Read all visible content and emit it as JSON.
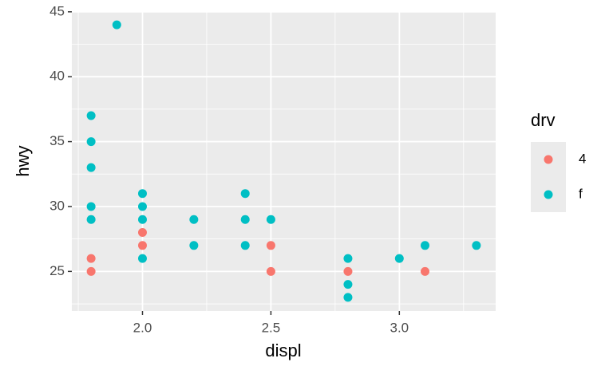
{
  "chart_data": {
    "type": "scatter",
    "x_label": "displ",
    "y_label": "hwy",
    "legend_title": "drv",
    "legend_position": "right",
    "xlim": [
      1.725,
      3.375
    ],
    "xticks": [
      {
        "value": 2.0,
        "label": "2.0"
      },
      {
        "value": 2.5,
        "label": "2.5"
      },
      {
        "value": 3.0,
        "label": "3.0"
      }
    ],
    "xminor": [
      1.75,
      2.25,
      2.75,
      3.25
    ],
    "ylim": [
      21.95,
      45.05
    ],
    "yticks": [
      25,
      30,
      35,
      40,
      45
    ],
    "yminor": [
      22.5,
      27.5,
      32.5,
      37.5,
      42.5
    ],
    "grid": true,
    "series": [
      {
        "name": "4",
        "color": "#F8766D",
        "x": [
          1.8,
          1.8,
          2.0,
          2.0,
          2.5,
          2.5,
          2.8,
          3.1
        ],
        "values": [
          26,
          25,
          28,
          27,
          27,
          25,
          25,
          25
        ]
      },
      {
        "name": "f",
        "color": "#00BFC4",
        "x": [
          1.9,
          1.8,
          1.8,
          1.8,
          1.8,
          1.8,
          2.0,
          2.0,
          2.0,
          2.0,
          2.2,
          2.2,
          2.4,
          2.4,
          2.4,
          2.5,
          2.8,
          2.8,
          2.8,
          3.0,
          3.1,
          3.3
        ],
        "values": [
          44,
          37,
          35,
          33,
          30,
          29,
          31,
          30,
          29,
          26,
          29,
          27,
          31,
          29,
          27,
          29,
          26,
          24,
          23,
          26,
          27,
          27
        ]
      }
    ]
  }
}
